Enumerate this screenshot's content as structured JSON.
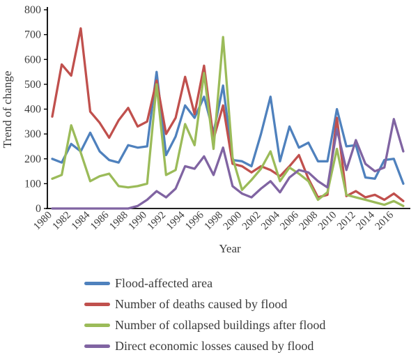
{
  "chart_data": {
    "type": "line",
    "title": "",
    "xlabel": "Year",
    "ylabel": "Trend of change",
    "ylim": [
      0,
      800
    ],
    "yticks": [
      0,
      100,
      200,
      300,
      400,
      500,
      600,
      700,
      800
    ],
    "x": [
      1980,
      1981,
      1982,
      1983,
      1984,
      1985,
      1986,
      1987,
      1988,
      1989,
      1990,
      1991,
      1992,
      1993,
      1994,
      1995,
      1996,
      1997,
      1998,
      1999,
      2000,
      2001,
      2002,
      2003,
      2004,
      2005,
      2006,
      2007,
      2008,
      2009,
      2010,
      2011,
      2012,
      2013,
      2014,
      2015,
      2016,
      2017
    ],
    "xtick_labels": [
      "1980",
      "1982",
      "1984",
      "1986",
      "1988",
      "1990",
      "1992",
      "1994",
      "1996",
      "1998",
      "2000",
      "2002",
      "2004",
      "2006",
      "2008",
      "2010",
      "2012",
      "2014",
      "2016"
    ],
    "grid": false,
    "legend_position": "bottom-left",
    "axis_color": "#000000",
    "label_color": "#3b3b3b",
    "series": [
      {
        "name": "Flood-affected area",
        "color": "#4f81bd",
        "values": [
          200,
          185,
          260,
          230,
          305,
          230,
          195,
          185,
          255,
          245,
          250,
          550,
          215,
          290,
          415,
          365,
          450,
          305,
          495,
          195,
          190,
          170,
          300,
          450,
          190,
          330,
          245,
          265,
          190,
          190,
          400,
          250,
          255,
          125,
          120,
          195,
          200,
          100
        ]
      },
      {
        "name": "Number of deaths caused by flood",
        "color": "#c0504d",
        "values": [
          370,
          580,
          535,
          725,
          390,
          345,
          285,
          355,
          405,
          330,
          350,
          515,
          300,
          365,
          530,
          380,
          575,
          280,
          415,
          180,
          170,
          145,
          170,
          155,
          130,
          170,
          215,
          120,
          45,
          55,
          365,
          50,
          70,
          45,
          55,
          35,
          60,
          30
        ]
      },
      {
        "name": "Number of collapsed buildings after flood",
        "color": "#9bbb59",
        "values": [
          120,
          135,
          335,
          225,
          110,
          130,
          140,
          90,
          85,
          90,
          100,
          500,
          135,
          155,
          340,
          255,
          545,
          240,
          690,
          205,
          75,
          115,
          160,
          230,
          110,
          165,
          140,
          110,
          35,
          65,
          240,
          55,
          45,
          35,
          25,
          15,
          30,
          10
        ]
      },
      {
        "name": "Direct economic losses caused by flood",
        "color": "#8064a2",
        "values": [
          0,
          0,
          0,
          0,
          0,
          0,
          0,
          0,
          0,
          10,
          35,
          70,
          45,
          80,
          170,
          160,
          210,
          135,
          245,
          90,
          60,
          45,
          80,
          110,
          65,
          125,
          155,
          145,
          110,
          85,
          320,
          155,
          275,
          180,
          150,
          165,
          360,
          230
        ]
      }
    ]
  }
}
